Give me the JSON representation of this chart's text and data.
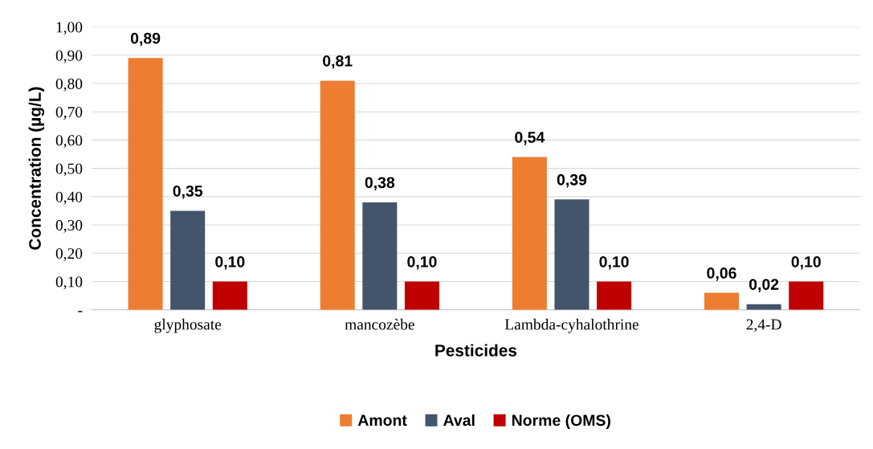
{
  "chart_data": {
    "type": "bar",
    "xlabel": "Pesticides",
    "ylabel": "Concentration (µg/L)",
    "categories": [
      "glyphosate",
      "mancozèbe",
      "Lambda-cyhalothrine",
      "2,4-D"
    ],
    "series": [
      {
        "name": "Amont",
        "color": "#ed7d31",
        "values": [
          0.89,
          0.81,
          0.54,
          0.06
        ],
        "value_labels": [
          "0,89",
          "0,81",
          "0,54",
          "0,06"
        ]
      },
      {
        "name": "Aval",
        "color": "#44546a",
        "values": [
          0.35,
          0.38,
          0.39,
          0.02
        ],
        "value_labels": [
          "0,35",
          "0,38",
          "0,39",
          "0,02"
        ]
      },
      {
        "name": "Norme (OMS)",
        "color": "#c00000",
        "values": [
          0.1,
          0.1,
          0.1,
          0.1
        ],
        "value_labels": [
          "0,10",
          "0,10",
          "0,10",
          "0,10"
        ]
      }
    ],
    "ylim": [
      0,
      1.0
    ],
    "yticks": [
      {
        "value": 0,
        "label": "-"
      },
      {
        "value": 0.1,
        "label": "0,10"
      },
      {
        "value": 0.2,
        "label": "0,20"
      },
      {
        "value": 0.3,
        "label": "0,30"
      },
      {
        "value": 0.4,
        "label": "0,40"
      },
      {
        "value": 0.5,
        "label": "0,50"
      },
      {
        "value": 0.6,
        "label": "0,60"
      },
      {
        "value": 0.7,
        "label": "0,70"
      },
      {
        "value": 0.8,
        "label": "0,80"
      },
      {
        "value": 0.9,
        "label": "0,90"
      },
      {
        "value": 1.0,
        "label": "1,00"
      }
    ],
    "grid": "y",
    "legend": "bottom"
  }
}
